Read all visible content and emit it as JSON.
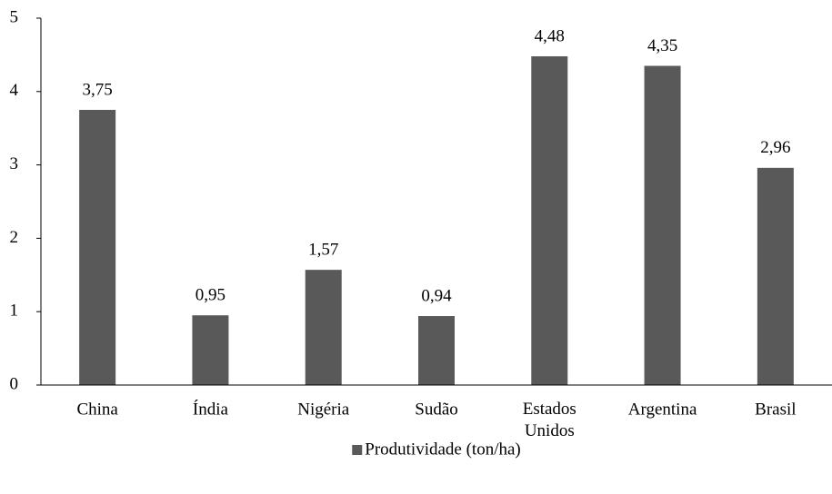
{
  "chart_data": {
    "type": "bar",
    "categories": [
      "China",
      "Índia",
      "Nigéria",
      "Sudão",
      "Estados Unidos",
      "Argentina",
      "Brasil"
    ],
    "series": [
      {
        "name": "Produtividade (ton/ha)",
        "color": "#595959",
        "values": [
          3.75,
          0.95,
          1.57,
          0.94,
          4.48,
          4.35,
          2.96
        ],
        "value_labels": [
          "3,75",
          "0,95",
          "1,57",
          "0,94",
          "4,48",
          "4,35",
          "2,96"
        ]
      }
    ],
    "ylim": [
      0,
      5
    ],
    "yticks": [
      0,
      1,
      2,
      3,
      4,
      5
    ],
    "grid": false,
    "legend": "bottom"
  }
}
